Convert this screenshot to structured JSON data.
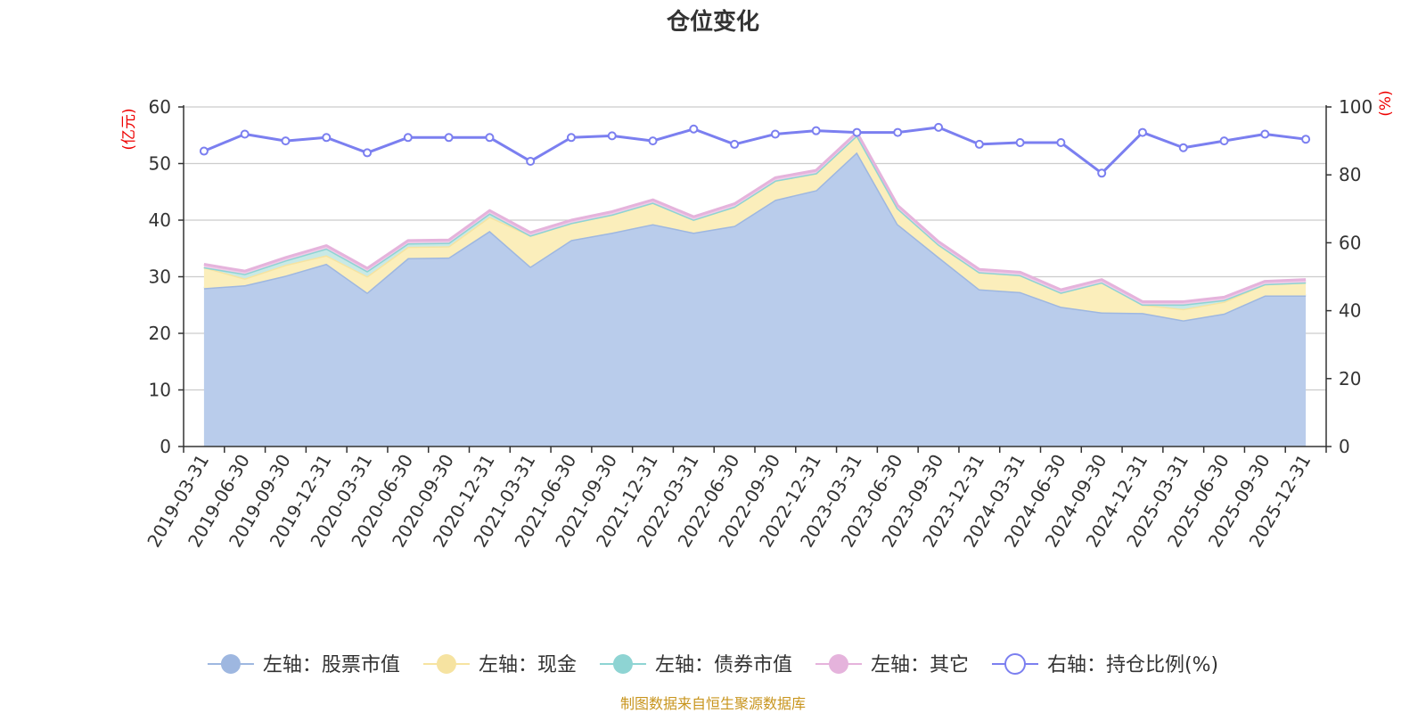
{
  "chart_data": {
    "type": "area",
    "title": "仓位变化",
    "categories": [
      "2019-03-31",
      "2019-06-30",
      "2019-09-30",
      "2019-12-31",
      "2020-03-31",
      "2020-06-30",
      "2020-09-30",
      "2020-12-31",
      "2021-03-31",
      "2021-06-30",
      "2021-09-30",
      "2021-12-31",
      "2022-03-31",
      "2022-06-30",
      "2022-09-30",
      "2022-12-31",
      "2023-03-31",
      "2023-06-30",
      "2023-09-30",
      "2023-12-31",
      "2024-03-31",
      "2024-06-30",
      "2024-09-30",
      "2024-12-31",
      "2025-03-31",
      "2025-06-30",
      "2025-09-30",
      "2025-12-31"
    ],
    "left_axis": {
      "unit": "(亿元)",
      "ylim": [
        0,
        60
      ],
      "ticks": [
        "0",
        "10",
        "20",
        "30",
        "40",
        "50",
        "60"
      ]
    },
    "right_axis": {
      "unit": "(%)",
      "ylim": [
        0,
        100
      ],
      "ticks": [
        "0",
        "20",
        "40",
        "60",
        "80",
        "100"
      ]
    },
    "series": [
      {
        "name": "左轴：股票市值",
        "axis": "left",
        "stack": true,
        "color": "#9eb7e0",
        "fill": "#b9cceb",
        "values": [
          28.0,
          28.5,
          30.2,
          32.3,
          27.2,
          33.3,
          33.4,
          38.1,
          31.8,
          36.5,
          37.8,
          39.3,
          37.8,
          39.0,
          43.6,
          45.3,
          52.0,
          39.3,
          33.5,
          27.8,
          27.3,
          24.7,
          23.7,
          23.6,
          22.3,
          23.5,
          26.7,
          26.7
        ]
      },
      {
        "name": "左轴：现金",
        "axis": "left",
        "stack": true,
        "color": "#f6e3a1",
        "fill": "#fbeebb",
        "values": [
          3.7,
          1.2,
          1.9,
          1.5,
          2.9,
          2.0,
          2.0,
          2.5,
          5.5,
          3.0,
          3.2,
          3.8,
          2.3,
          3.4,
          3.4,
          3.0,
          3.0,
          2.8,
          2.2,
          3.0,
          3.0,
          2.5,
          5.3,
          1.5,
          2.0,
          2.1,
          2.0,
          2.3
        ]
      },
      {
        "name": "左轴：债券市值",
        "axis": "left",
        "stack": true,
        "color": "#8ed4d3",
        "fill": "#c8e9e6",
        "values": [
          0,
          0.8,
          0.8,
          1.2,
          0.9,
          0.6,
          0.6,
          0.6,
          0,
          0,
          0,
          0,
          0,
          0,
          0,
          0,
          0,
          0,
          0,
          0,
          0,
          0,
          0,
          0,
          0.8,
          0.3,
          0,
          0
        ]
      },
      {
        "name": "左轴：其它",
        "axis": "left",
        "stack": true,
        "color": "#e5b3dc",
        "fill": "#efcce8",
        "values": [
          0.5,
          0.5,
          0.5,
          0.5,
          0.5,
          0.5,
          0.5,
          0.5,
          0.5,
          0.5,
          0.5,
          0.5,
          0.5,
          0.5,
          0.5,
          0.5,
          0.5,
          0.5,
          0.5,
          0.5,
          0.5,
          0.5,
          0.5,
          0.5,
          0.5,
          0.5,
          0.5,
          0.5
        ]
      },
      {
        "name": "右轴：持仓比例(%)",
        "axis": "right",
        "stack": false,
        "color": "#7b7ff0",
        "values": [
          87,
          92,
          90,
          91,
          86.5,
          91,
          91,
          91,
          84,
          91,
          91.5,
          90,
          93.5,
          89,
          92,
          93,
          92.5,
          92.5,
          94,
          89,
          89.5,
          89.5,
          80.5,
          92.5,
          88,
          90,
          92,
          90.5
        ]
      }
    ],
    "legend_position": "bottom",
    "grid": true
  },
  "source_note": "制图数据来自恒生聚源数据库",
  "colors": {
    "axis": "#333333",
    "grid": "#cccccc",
    "unit": "#ee0000",
    "source": "#c8951e"
  }
}
